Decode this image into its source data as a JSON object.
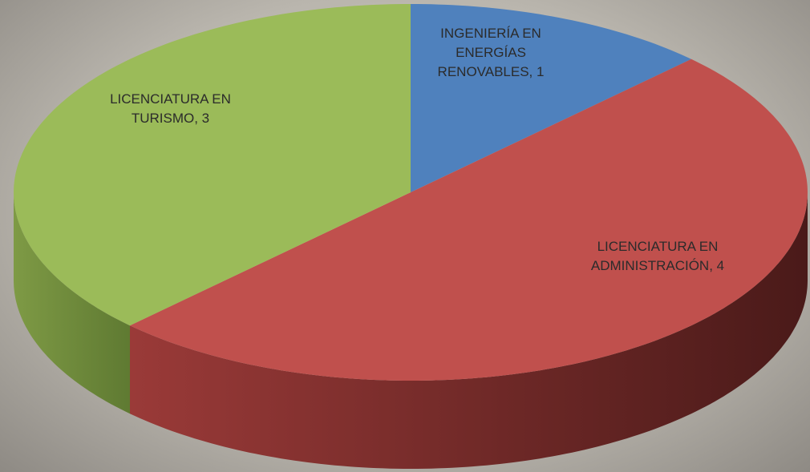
{
  "chart_data": {
    "type": "pie",
    "values": [
      1,
      4,
      3
    ],
    "value_labels": [
      "INGENIERÍA EN ENERGÍAS RENOVABLES, 1",
      "LICENCIATURA EN ADMINISTRACIÓN, 4",
      "LICENCIATURA EN TURISMO, 3"
    ],
    "colors": [
      "#4f81bd",
      "#c0504d",
      "#9bbb59"
    ],
    "side_colors": [
      [
        "#2c4a70",
        "#1e3350"
      ],
      [
        "#9a3a38",
        "#4a1a19"
      ],
      [
        "#7e9a45",
        "#5f7a32"
      ]
    ]
  }
}
